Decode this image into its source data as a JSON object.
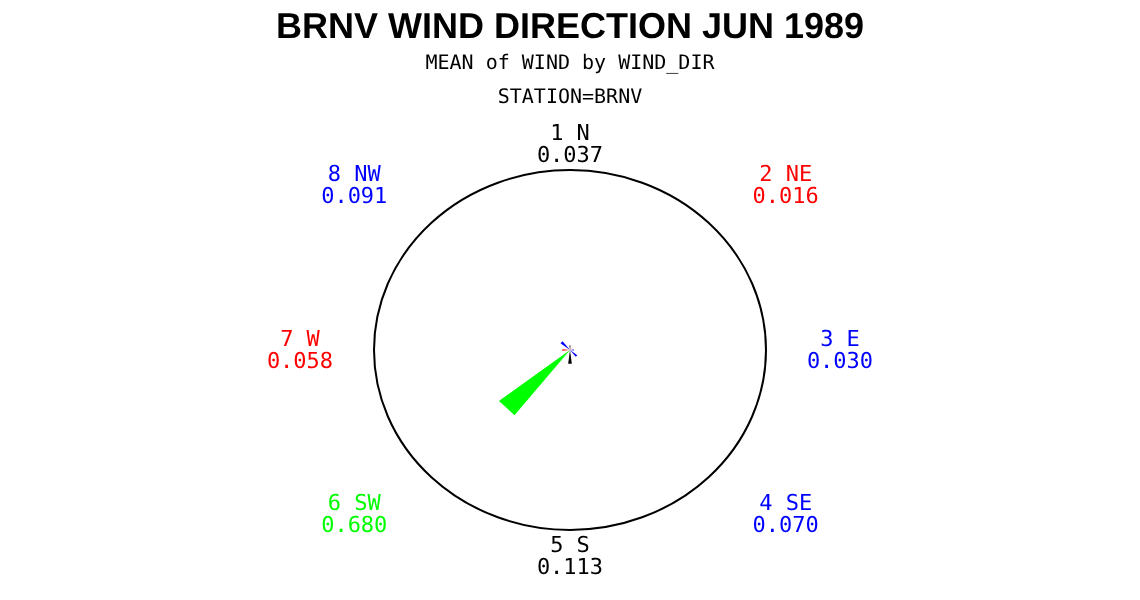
{
  "chart_data": {
    "type": "other",
    "title": "BRNV WIND DIRECTION JUN 1989",
    "subtitle": "MEAN of WIND by WIND_DIR",
    "annotations": [
      "STATION=BRNV"
    ],
    "categories": [
      "1 N",
      "2 NE",
      "3 E",
      "4 SE",
      "5 S",
      "6 SW",
      "7 W",
      "8 NW"
    ],
    "values": [
      0.037,
      0.016,
      0.03,
      0.07,
      0.113,
      0.68,
      0.058,
      0.091
    ],
    "colors": [
      "#000000",
      "#ff0000",
      "#0000ff",
      "#0000ff",
      "#000000",
      "#00ff00",
      "#ff0000",
      "#0000ff"
    ],
    "value_labels": [
      "0.037",
      "0.016",
      "0.030",
      "0.070",
      "0.113",
      "0.680",
      "0.058",
      "0.091"
    ]
  }
}
